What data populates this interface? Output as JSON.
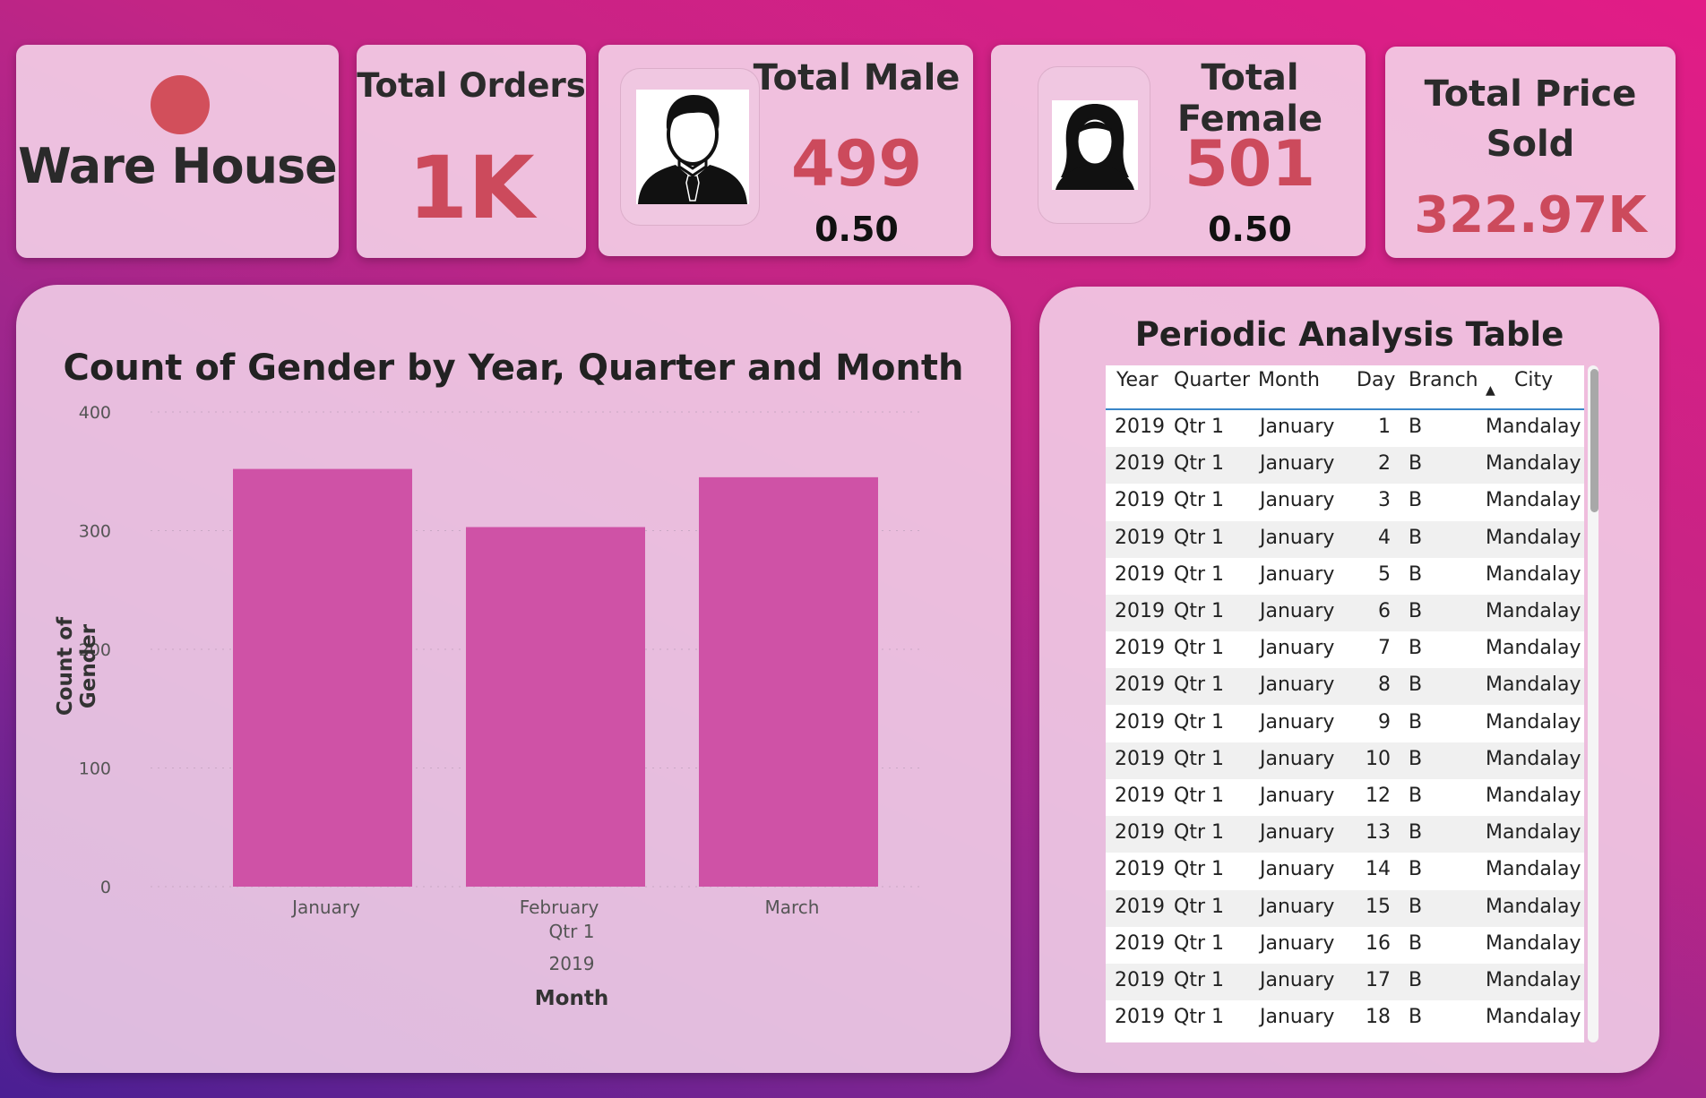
{
  "kpis": {
    "warehouse": {
      "title": "Ware House"
    },
    "orders": {
      "label": "Total Orders",
      "value": "1K"
    },
    "male": {
      "label": "Total Male",
      "value": "499",
      "ratio": "0.50",
      "icon": "male-avatar-icon"
    },
    "female": {
      "label": "Total Female",
      "value": "501",
      "ratio": "0.50",
      "icon": "female-avatar-icon"
    },
    "price": {
      "label_line1": "Total Price",
      "label_line2": "Sold",
      "value": "322.97K"
    }
  },
  "colors": {
    "accent": "#cc4a5c",
    "bar": "#cf52a6",
    "table_header_line": "#3a86c8"
  },
  "chart_data": {
    "type": "bar",
    "title": "Count of Gender by Year, Quarter and Month",
    "categories": [
      "January",
      "February",
      "March"
    ],
    "group_labels": [
      "Qtr 1",
      "2019"
    ],
    "values": [
      352,
      303,
      345
    ],
    "xlabel": "Month",
    "ylabel": "Count of Gender",
    "ylim": [
      0,
      400
    ],
    "yticks": [
      0,
      100,
      200,
      300,
      400
    ],
    "grid": true,
    "legend": "none"
  },
  "table": {
    "title": "Periodic Analysis Table",
    "columns": [
      "Year",
      "Quarter",
      "Month",
      "Day",
      "Branch",
      "City"
    ],
    "sort_indicator": "▲",
    "rows": [
      [
        "2019",
        "Qtr 1",
        "January",
        "1",
        "B",
        "Mandalay"
      ],
      [
        "2019",
        "Qtr 1",
        "January",
        "2",
        "B",
        "Mandalay"
      ],
      [
        "2019",
        "Qtr 1",
        "January",
        "3",
        "B",
        "Mandalay"
      ],
      [
        "2019",
        "Qtr 1",
        "January",
        "4",
        "B",
        "Mandalay"
      ],
      [
        "2019",
        "Qtr 1",
        "January",
        "5",
        "B",
        "Mandalay"
      ],
      [
        "2019",
        "Qtr 1",
        "January",
        "6",
        "B",
        "Mandalay"
      ],
      [
        "2019",
        "Qtr 1",
        "January",
        "7",
        "B",
        "Mandalay"
      ],
      [
        "2019",
        "Qtr 1",
        "January",
        "8",
        "B",
        "Mandalay"
      ],
      [
        "2019",
        "Qtr 1",
        "January",
        "9",
        "B",
        "Mandalay"
      ],
      [
        "2019",
        "Qtr 1",
        "January",
        "10",
        "B",
        "Mandalay"
      ],
      [
        "2019",
        "Qtr 1",
        "January",
        "12",
        "B",
        "Mandalay"
      ],
      [
        "2019",
        "Qtr 1",
        "January",
        "13",
        "B",
        "Mandalay"
      ],
      [
        "2019",
        "Qtr 1",
        "January",
        "14",
        "B",
        "Mandalay"
      ],
      [
        "2019",
        "Qtr 1",
        "January",
        "15",
        "B",
        "Mandalay"
      ],
      [
        "2019",
        "Qtr 1",
        "January",
        "16",
        "B",
        "Mandalay"
      ],
      [
        "2019",
        "Qtr 1",
        "January",
        "17",
        "B",
        "Mandalay"
      ],
      [
        "2019",
        "Qtr 1",
        "January",
        "18",
        "B",
        "Mandalay"
      ]
    ]
  }
}
